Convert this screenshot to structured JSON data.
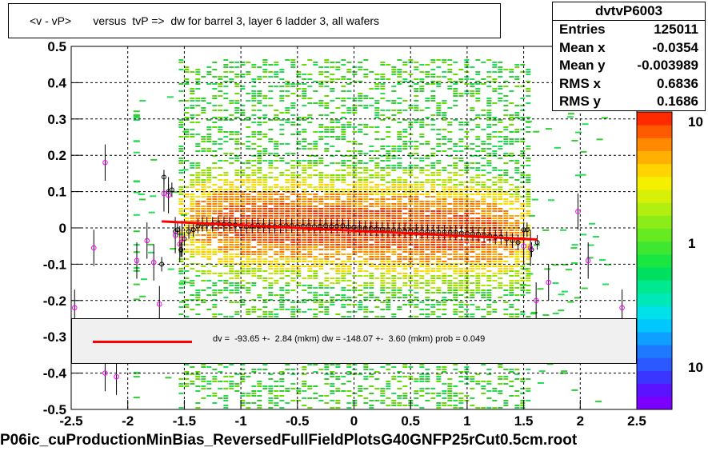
{
  "title": "<v - vP>       versus  tvP =>  dw for barrel 3, layer 6 ladder 3, all wafers",
  "stats": {
    "name": "dvtvP6003",
    "rows": [
      {
        "key": "Entries",
        "value": "125011"
      },
      {
        "key": "Mean x",
        "value": "-0.0354"
      },
      {
        "key": "Mean y",
        "value": "-0.003989"
      },
      {
        "key": "RMS x",
        "value": "0.6836"
      },
      {
        "key": "RMS y",
        "value": "0.1686"
      }
    ]
  },
  "fit": {
    "label": "dv =  -93.65 +-  2.84 (mkm) dw = -148.07 +-  3.60 (mkm) prob = 0.049",
    "color": "#ff0000"
  },
  "footer": "P06ic_cuProductionMinBias_ReversedFullFieldPlotsG40GNFP25rCut0.5cm.root",
  "colorbar": {
    "labels": [
      "10",
      "1",
      "10"
    ],
    "colors": [
      "#7b00ff",
      "#5a12ff",
      "#3a35ff",
      "#2c58ff",
      "#1e79ff",
      "#0fa0ff",
      "#00c8ff",
      "#00e0e8",
      "#00e8b8",
      "#00e890",
      "#00e060",
      "#19e640",
      "#3fe830",
      "#66ea20",
      "#8cec18",
      "#b2ee10",
      "#d6f008",
      "#f5f000",
      "#ffd400",
      "#ffb000",
      "#ff8a00",
      "#ff5a00",
      "#ff2a00"
    ]
  },
  "chart_data": {
    "type": "scatter",
    "subtype": "2d-histogram with profile",
    "xlim": [
      -2.5,
      2.5
    ],
    "ylim": [
      -0.5,
      0.5
    ],
    "xticks": [
      "-2.5",
      "-2",
      "-1.5",
      "-1",
      "-0.5",
      "0",
      "0.5",
      "1",
      "1.5",
      "2",
      "2.5"
    ],
    "yticks": [
      "-0.5",
      "-0.4",
      "-0.3",
      "-0.2",
      "-0.1",
      "0",
      "0.1",
      "0.2",
      "0.3",
      "0.4",
      "0.5"
    ],
    "grid": true,
    "profile_black": [
      {
        "x": -1.7,
        "y": -0.1
      },
      {
        "x": -1.68,
        "y": 0.14
      },
      {
        "x": -1.64,
        "y": 0.1
      },
      {
        "x": -1.61,
        "y": 0.105
      },
      {
        "x": -1.58,
        "y": -0.01
      },
      {
        "x": -1.56,
        "y": -0.005
      },
      {
        "x": -1.53,
        "y": -0.06
      },
      {
        "x": -1.5,
        "y": -0.03
      },
      {
        "x": -1.46,
        "y": -0.01
      },
      {
        "x": -1.42,
        "y": -0.005
      },
      {
        "x": -1.38,
        "y": 0.005
      },
      {
        "x": -1.34,
        "y": 0.01
      },
      {
        "x": -1.3,
        "y": 0.01
      },
      {
        "x": -1.25,
        "y": 0.01
      },
      {
        "x": -1.2,
        "y": 0.012
      },
      {
        "x": -1.15,
        "y": 0.01
      },
      {
        "x": -1.1,
        "y": 0.01
      },
      {
        "x": -1.05,
        "y": 0.008
      },
      {
        "x": -1.0,
        "y": 0.006
      },
      {
        "x": -0.95,
        "y": 0.004
      },
      {
        "x": -0.9,
        "y": 0.005
      },
      {
        "x": -0.85,
        "y": 0.007
      },
      {
        "x": -0.8,
        "y": 0.006
      },
      {
        "x": -0.75,
        "y": 0.004
      },
      {
        "x": -0.7,
        "y": 0.004
      },
      {
        "x": -0.65,
        "y": 0.005
      },
      {
        "x": -0.6,
        "y": 0.006
      },
      {
        "x": -0.55,
        "y": 0.006
      },
      {
        "x": -0.5,
        "y": 0.004
      },
      {
        "x": -0.45,
        "y": 0.005
      },
      {
        "x": -0.4,
        "y": 0.006
      },
      {
        "x": -0.35,
        "y": 0.004
      },
      {
        "x": -0.3,
        "y": 0.005
      },
      {
        "x": -0.25,
        "y": 0.006
      },
      {
        "x": -0.2,
        "y": 0.004
      },
      {
        "x": -0.15,
        "y": 0.005
      },
      {
        "x": -0.1,
        "y": 0.006
      },
      {
        "x": -0.05,
        "y": 0.003
      },
      {
        "x": 0.0,
        "y": 0.002
      },
      {
        "x": 0.05,
        "y": 0.0
      },
      {
        "x": 0.1,
        "y": -0.001
      },
      {
        "x": 0.15,
        "y": -0.002
      },
      {
        "x": 0.2,
        "y": -0.003
      },
      {
        "x": 0.25,
        "y": -0.004
      },
      {
        "x": 0.3,
        "y": -0.005
      },
      {
        "x": 0.35,
        "y": -0.006
      },
      {
        "x": 0.4,
        "y": -0.006
      },
      {
        "x": 0.45,
        "y": -0.008
      },
      {
        "x": 0.5,
        "y": -0.008
      },
      {
        "x": 0.55,
        "y": -0.009
      },
      {
        "x": 0.6,
        "y": -0.01
      },
      {
        "x": 0.65,
        "y": -0.01
      },
      {
        "x": 0.7,
        "y": -0.011
      },
      {
        "x": 0.75,
        "y": -0.012
      },
      {
        "x": 0.8,
        "y": -0.012
      },
      {
        "x": 0.85,
        "y": -0.013
      },
      {
        "x": 0.9,
        "y": -0.013
      },
      {
        "x": 0.95,
        "y": -0.014
      },
      {
        "x": 1.0,
        "y": -0.015
      },
      {
        "x": 1.05,
        "y": -0.016
      },
      {
        "x": 1.1,
        "y": -0.018
      },
      {
        "x": 1.15,
        "y": -0.02
      },
      {
        "x": 1.2,
        "y": -0.022
      },
      {
        "x": 1.25,
        "y": -0.025
      },
      {
        "x": 1.3,
        "y": -0.025
      },
      {
        "x": 1.35,
        "y": -0.03
      },
      {
        "x": 1.4,
        "y": -0.035
      },
      {
        "x": 1.45,
        "y": -0.04
      },
      {
        "x": 1.5,
        "y": -0.005
      },
      {
        "x": 1.53,
        "y": -0.005
      },
      {
        "x": 1.57,
        "y": -0.06
      },
      {
        "x": 1.62,
        "y": -0.04
      }
    ],
    "profile_magenta": [
      {
        "x": -2.47,
        "y": -0.22
      },
      {
        "x": -2.3,
        "y": -0.055
      },
      {
        "x": -2.2,
        "y": 0.18
      },
      {
        "x": -2.1,
        "y": -0.41
      },
      {
        "x": -2.2,
        "y": -0.4
      },
      {
        "x": -1.92,
        "y": -0.09
      },
      {
        "x": -1.83,
        "y": -0.035
      },
      {
        "x": -1.77,
        "y": -0.095
      },
      {
        "x": -1.72,
        "y": -0.21
      },
      {
        "x": -1.68,
        "y": 0.095
      },
      {
        "x": -1.64,
        "y": 0.09
      },
      {
        "x": -1.58,
        "y": -0.02
      },
      {
        "x": -1.54,
        "y": -0.045
      },
      {
        "x": -1.52,
        "y": -0.03
      },
      {
        "x": 1.5,
        "y": -0.05
      },
      {
        "x": 1.56,
        "y": -0.055
      },
      {
        "x": 1.61,
        "y": -0.2
      },
      {
        "x": 1.72,
        "y": -0.15
      },
      {
        "x": 1.98,
        "y": 0.045
      },
      {
        "x": 2.07,
        "y": -0.09
      },
      {
        "x": 2.37,
        "y": -0.22
      }
    ],
    "fit_line": {
      "x": [
        -1.7,
        1.62
      ],
      "y": [
        0.018,
        -0.032
      ]
    }
  }
}
